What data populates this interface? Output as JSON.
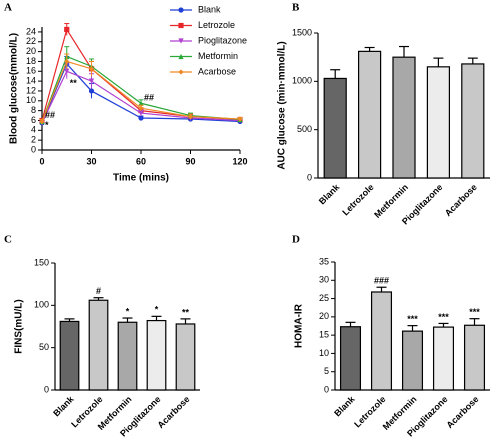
{
  "chart_data": [
    {
      "type": "line",
      "label": "A",
      "xlabel": "Time  (mins)",
      "ylabel": "Blood  glucose(mmol/L)",
      "x": [
        0,
        15,
        30,
        60,
        90,
        120
      ],
      "xlim": [
        0,
        120
      ],
      "xticks": [
        0,
        30,
        60,
        90,
        120
      ],
      "ylim": [
        0,
        25
      ],
      "yticks": [
        0,
        2,
        4,
        6,
        8,
        10,
        12,
        14,
        16,
        18,
        20,
        22,
        24
      ],
      "series": [
        {
          "name": "Blank",
          "color": "#1f3fd6",
          "marker": "circle",
          "values": [
            5.5,
            17.5,
            12,
            6.5,
            6.3,
            5.8
          ],
          "errors": [
            0.4,
            1.5,
            1.5,
            0.4,
            0.4,
            0.3
          ]
        },
        {
          "name": "Letrozole",
          "color": "#e8262a",
          "marker": "square",
          "values": [
            6.0,
            24.5,
            16.5,
            8.0,
            6.8,
            6.2
          ],
          "errors": [
            0.4,
            1.2,
            1.5,
            0.6,
            0.5,
            0.3
          ]
        },
        {
          "name": "Pioglitazone",
          "color": "#b040d0",
          "marker": "triangle-down",
          "values": [
            5.5,
            16,
            14,
            7.5,
            6.5,
            6.0
          ],
          "errors": [
            0.4,
            1.5,
            1.5,
            0.6,
            0.5,
            0.3
          ]
        },
        {
          "name": "Metformin",
          "color": "#2aa838",
          "marker": "triangle-up",
          "values": [
            5.8,
            19,
            17,
            9.5,
            7.0,
            6.2
          ],
          "errors": [
            0.4,
            2.0,
            1.5,
            0.7,
            0.5,
            0.3
          ]
        },
        {
          "name": "Acarbose",
          "color": "#f08a24",
          "marker": "diamond",
          "values": [
            5.8,
            18,
            16.5,
            8.5,
            6.8,
            6.3
          ],
          "errors": [
            0.4,
            1.5,
            1.5,
            0.6,
            0.5,
            0.3
          ]
        }
      ],
      "annotations": [
        {
          "text": "##",
          "x": 0,
          "y": 7,
          "color": "#e8262a"
        },
        {
          "text": "*",
          "x": 0,
          "y": 5,
          "color": "#b040d0"
        },
        {
          "text": "**",
          "x": 15,
          "y": 13.5,
          "color": "#b040d0"
        },
        {
          "text": "##",
          "x": 60,
          "y": 10.5,
          "color": "#e8262a"
        }
      ]
    },
    {
      "type": "bar",
      "label": "B",
      "ylabel": "AUC glucose  (min·mmol/L)",
      "categories": [
        "Blank",
        "Letrozole",
        "Metformin",
        "Pioglitazone",
        "Acarbose"
      ],
      "values": [
        1030,
        1310,
        1250,
        1150,
        1180
      ],
      "errors": [
        90,
        40,
        110,
        90,
        60
      ],
      "colors": [
        "#666666",
        "#c8c8c8",
        "#a8a8a8",
        "#ececec",
        "#c8c8c8"
      ],
      "ylim": [
        0,
        1500
      ],
      "yticks": [
        0,
        500,
        1000,
        1500
      ]
    },
    {
      "type": "bar",
      "label": "C",
      "ylabel": "FINS(mU/L)",
      "categories": [
        "Blank",
        "Letrozole",
        "Metformin",
        "Pioglitazone",
        "Acarbose"
      ],
      "values": [
        81,
        106,
        80,
        82,
        78
      ],
      "errors": [
        3,
        3,
        5,
        5,
        6
      ],
      "significance": [
        null,
        "#",
        "*",
        "*",
        "**"
      ],
      "significance_colors": [
        null,
        "#e8262a",
        "#000000",
        "#000000",
        "#000000"
      ],
      "colors": [
        "#666666",
        "#c8c8c8",
        "#a8a8a8",
        "#ececec",
        "#c8c8c8"
      ],
      "ylim": [
        0,
        150
      ],
      "yticks": [
        0,
        50,
        100,
        150
      ]
    },
    {
      "type": "bar",
      "label": "D",
      "ylabel": "HOMA-IR",
      "categories": [
        "Blank",
        "Letrozole",
        "Metformin",
        "Pioglitazone",
        "Acarbose"
      ],
      "values": [
        17.3,
        26.8,
        16.1,
        17.2,
        17.7
      ],
      "errors": [
        1.2,
        1.3,
        1.5,
        1.0,
        1.8
      ],
      "significance": [
        null,
        "###",
        "***",
        "***",
        "***"
      ],
      "significance_colors": [
        null,
        "#e8262a",
        "#000000",
        "#000000",
        "#000000"
      ],
      "colors": [
        "#666666",
        "#c8c8c8",
        "#a8a8a8",
        "#ececec",
        "#c8c8c8"
      ],
      "ylim": [
        0,
        35
      ],
      "yticks": [
        0,
        5,
        10,
        15,
        20,
        25,
        30,
        35
      ]
    }
  ]
}
